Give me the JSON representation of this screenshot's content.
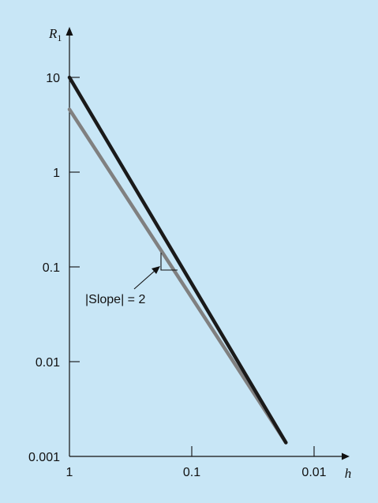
{
  "chart_data": {
    "type": "line",
    "x_scale": "log",
    "y_scale": "log",
    "x_direction": "decreasing",
    "xlim": [
      1,
      0.01
    ],
    "ylim": [
      0.001,
      10
    ],
    "xlabel": "h",
    "ylabel": {
      "main": "R",
      "sub": "1"
    },
    "x_ticks": [
      {
        "value": 1,
        "label": "1"
      },
      {
        "value": 0.1,
        "label": "0.1"
      },
      {
        "value": 0.01,
        "label": "0.01"
      }
    ],
    "y_ticks": [
      {
        "value": 10,
        "label": "10"
      },
      {
        "value": 1,
        "label": "1"
      },
      {
        "value": 0.1,
        "label": "0.1"
      },
      {
        "value": 0.01,
        "label": "0.01"
      },
      {
        "value": 0.001,
        "label": "0.001"
      }
    ],
    "series": [
      {
        "color": "#1a1a1a",
        "x": [
          1,
          0.017
        ],
        "y": [
          10,
          0.0014
        ]
      },
      {
        "color": "#808080",
        "x": [
          1,
          0.017
        ],
        "y": [
          4.6,
          0.0014
        ]
      }
    ],
    "grid": false,
    "annotation": {
      "text": "|Slope| = 2"
    }
  }
}
